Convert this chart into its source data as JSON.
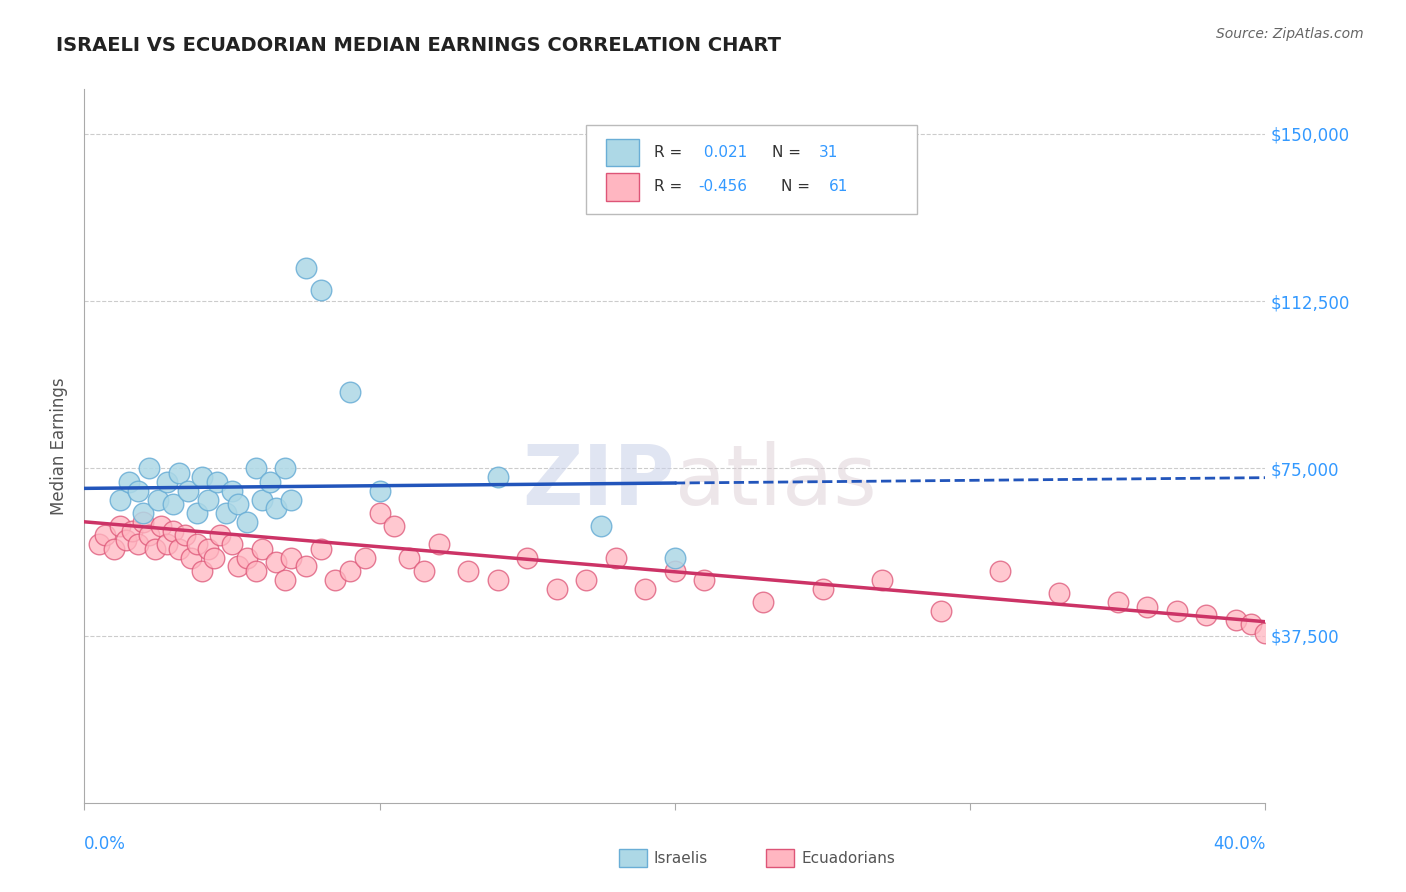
{
  "title": "ISRAELI VS ECUADORIAN MEDIAN EARNINGS CORRELATION CHART",
  "source": "Source: ZipAtlas.com",
  "ylabel": "Median Earnings",
  "xmin": 0.0,
  "xmax": 0.4,
  "ymin": 0,
  "ymax": 160000,
  "ytick_vals": [
    0,
    37500,
    75000,
    112500,
    150000
  ],
  "ytick_labels": [
    "",
    "$37,500",
    "$75,000",
    "$112,500",
    "$150,000"
  ],
  "xtick_positions": [
    0.0,
    0.1,
    0.2,
    0.3,
    0.4
  ],
  "blue_color": "#add8e6",
  "blue_edge": "#6aaed6",
  "blue_line_color": "#2255bb",
  "pink_color": "#ffb6c1",
  "pink_edge": "#dd5577",
  "pink_line_color": "#cc3366",
  "blue_line_solid_end": 0.2,
  "blue_slope": 6000,
  "blue_intercept": 70500,
  "pink_slope": -56000,
  "pink_intercept": 63000,
  "watermark_zip": "ZIP",
  "watermark_atlas": "atlas",
  "blue_x": [
    0.012,
    0.015,
    0.018,
    0.02,
    0.022,
    0.025,
    0.028,
    0.03,
    0.032,
    0.035,
    0.038,
    0.04,
    0.042,
    0.045,
    0.048,
    0.05,
    0.052,
    0.055,
    0.058,
    0.06,
    0.063,
    0.065,
    0.068,
    0.07,
    0.075,
    0.08,
    0.09,
    0.1,
    0.14,
    0.175,
    0.2
  ],
  "blue_y": [
    68000,
    72000,
    70000,
    65000,
    75000,
    68000,
    72000,
    67000,
    74000,
    70000,
    65000,
    73000,
    68000,
    72000,
    65000,
    70000,
    67000,
    63000,
    75000,
    68000,
    72000,
    66000,
    75000,
    68000,
    120000,
    115000,
    92000,
    70000,
    73000,
    62000,
    55000
  ],
  "pink_x": [
    0.005,
    0.007,
    0.01,
    0.012,
    0.014,
    0.016,
    0.018,
    0.02,
    0.022,
    0.024,
    0.026,
    0.028,
    0.03,
    0.032,
    0.034,
    0.036,
    0.038,
    0.04,
    0.042,
    0.044,
    0.046,
    0.05,
    0.052,
    0.055,
    0.058,
    0.06,
    0.065,
    0.068,
    0.07,
    0.075,
    0.08,
    0.085,
    0.09,
    0.095,
    0.1,
    0.105,
    0.11,
    0.115,
    0.12,
    0.13,
    0.14,
    0.15,
    0.16,
    0.17,
    0.18,
    0.19,
    0.2,
    0.21,
    0.23,
    0.25,
    0.27,
    0.29,
    0.31,
    0.33,
    0.35,
    0.36,
    0.37,
    0.38,
    0.39,
    0.395,
    0.4
  ],
  "pink_y": [
    58000,
    60000,
    57000,
    62000,
    59000,
    61000,
    58000,
    63000,
    60000,
    57000,
    62000,
    58000,
    61000,
    57000,
    60000,
    55000,
    58000,
    52000,
    57000,
    55000,
    60000,
    58000,
    53000,
    55000,
    52000,
    57000,
    54000,
    50000,
    55000,
    53000,
    57000,
    50000,
    52000,
    55000,
    65000,
    62000,
    55000,
    52000,
    58000,
    52000,
    50000,
    55000,
    48000,
    50000,
    55000,
    48000,
    52000,
    50000,
    45000,
    48000,
    50000,
    43000,
    52000,
    47000,
    45000,
    44000,
    43000,
    42000,
    41000,
    40000,
    38000
  ]
}
